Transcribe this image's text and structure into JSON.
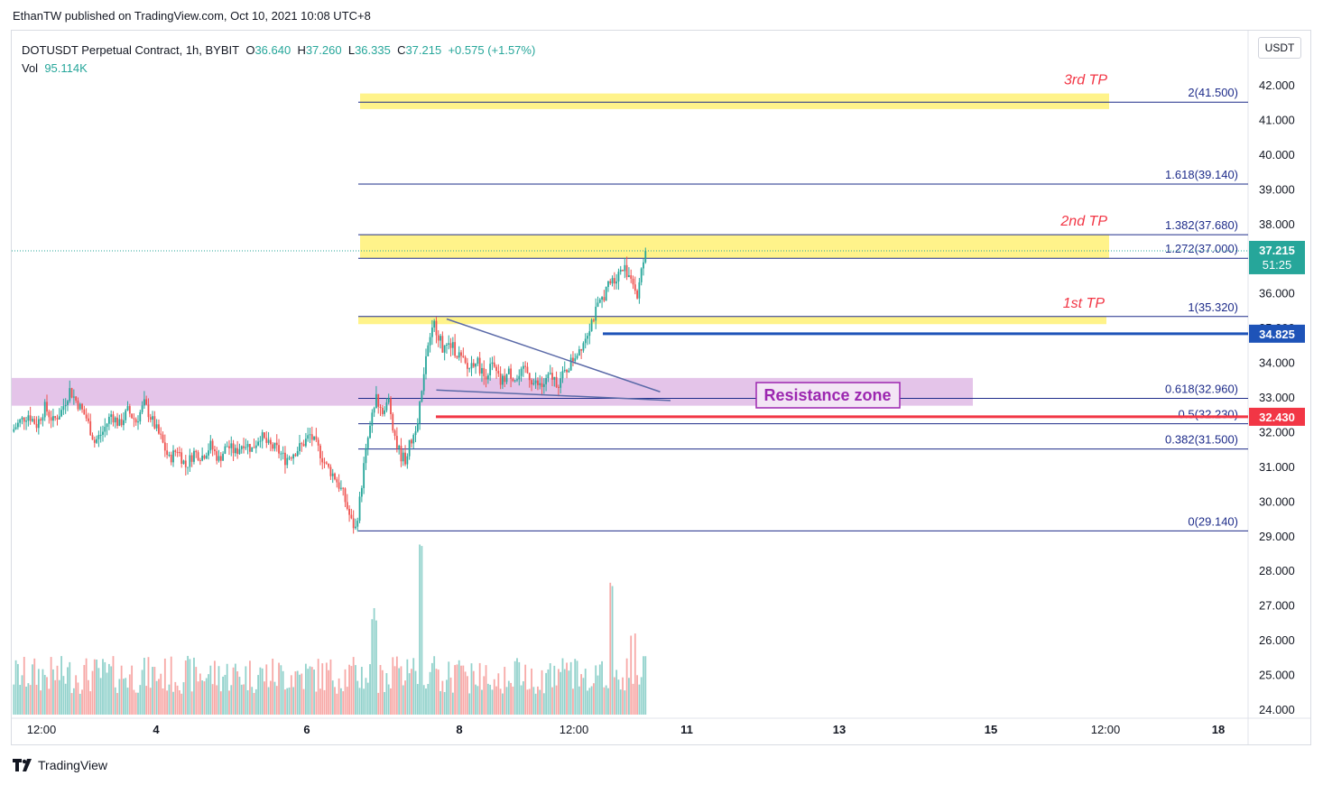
{
  "header": {
    "publish_text": "EthanTW published on TradingView.com, Oct 10, 2021 10:08 UTC+8"
  },
  "legend": {
    "symbol": "DOTUSDT Perpetual Contract, 1h, BYBIT",
    "o_label": "O",
    "o_value": "36.640",
    "h_label": "H",
    "h_value": "37.260",
    "l_label": "L",
    "l_value": "36.335",
    "c_label": "C",
    "c_value": "37.215",
    "change": "+0.575 (+1.57%)",
    "vol_label": "Vol",
    "vol_value": "95.114K"
  },
  "currency_button": "USDT",
  "footer": {
    "brand": "TradingView"
  },
  "colors": {
    "up": "#26a69a",
    "down": "#ef5350",
    "fib_line": "#1e2c8a",
    "tp_zone": "#fff176",
    "resistance_zone": "#e1bee7",
    "blue_level": "#1e53b8",
    "red_level": "#f23645",
    "trend": "#5b6aa8"
  },
  "chart_data": {
    "type": "candlestick",
    "y_axis": {
      "min": 24.0,
      "max": 42.0,
      "ticks": [
        "42.000",
        "41.000",
        "40.000",
        "39.000",
        "38.000",
        "37.000",
        "36.000",
        "35.000",
        "34.000",
        "33.000",
        "32.000",
        "31.000",
        "30.000",
        "29.000",
        "28.000",
        "27.000",
        "26.000",
        "25.000",
        "24.000"
      ]
    },
    "x_axis": {
      "ticks": [
        "12:00",
        "4",
        "6",
        "8",
        "12:00",
        "11",
        "13",
        "15",
        "12:00",
        "18"
      ],
      "bold": [
        "4",
        "6",
        "8",
        "11",
        "13",
        "15",
        "18"
      ]
    },
    "fib_levels": [
      {
        "ratio": "2",
        "value": 41.5,
        "label": "2(41.500)"
      },
      {
        "ratio": "1.618",
        "value": 39.14,
        "label": "1.618(39.140)"
      },
      {
        "ratio": "1.382",
        "value": 37.68,
        "label": "1.382(37.680)"
      },
      {
        "ratio": "1.272",
        "value": 37.0,
        "label": "1.272(37.000)"
      },
      {
        "ratio": "1",
        "value": 35.32,
        "label": "1(35.320)"
      },
      {
        "ratio": "0.618",
        "value": 32.96,
        "label": "0.618(32.960)"
      },
      {
        "ratio": "0.5",
        "value": 32.23,
        "label": "0.5(32.230)"
      },
      {
        "ratio": "0.382",
        "value": 31.5,
        "label": "0.382(31.500)"
      },
      {
        "ratio": "0",
        "value": 29.14,
        "label": "0(29.140)"
      }
    ],
    "take_profit_zones": [
      {
        "label": "3rd TP",
        "from": 41.3,
        "to": 41.75
      },
      {
        "label": "2nd TP",
        "from": 37.0,
        "to": 37.68
      },
      {
        "label": "1st TP",
        "from": 35.1,
        "to": 35.32
      }
    ],
    "resistance_zone": {
      "label": "Resistance zone",
      "from": 32.75,
      "to": 33.55
    },
    "price_levels": [
      {
        "value": 37.215,
        "label": "37.215",
        "countdown": "51:25",
        "color": "#26a69a"
      },
      {
        "value": 34.825,
        "label": "34.825",
        "color": "#1e53b8"
      },
      {
        "value": 32.43,
        "label": "32.430",
        "color": "#f23645"
      }
    ],
    "last_price": 37.215,
    "price_path": [
      [
        0,
        32.0
      ],
      [
        4,
        32.3
      ],
      [
        8,
        32.5
      ],
      [
        12,
        32.2
      ],
      [
        16,
        32.7
      ],
      [
        20,
        32.3
      ],
      [
        24,
        32.6
      ],
      [
        28,
        33.2
      ],
      [
        32,
        32.8
      ],
      [
        36,
        32.4
      ],
      [
        40,
        31.7
      ],
      [
        44,
        32.0
      ],
      [
        48,
        32.5
      ],
      [
        52,
        32.2
      ],
      [
        56,
        32.6
      ],
      [
        60,
        32.3
      ],
      [
        64,
        32.8
      ],
      [
        68,
        32.3
      ],
      [
        72,
        31.8
      ],
      [
        76,
        31.2
      ],
      [
        80,
        31.5
      ],
      [
        84,
        31.0
      ],
      [
        88,
        31.4
      ],
      [
        92,
        31.3
      ],
      [
        96,
        31.6
      ],
      [
        100,
        31.2
      ],
      [
        104,
        31.6
      ],
      [
        108,
        31.4
      ],
      [
        112,
        31.7
      ],
      [
        116,
        31.5
      ],
      [
        120,
        31.9
      ],
      [
        124,
        31.6
      ],
      [
        128,
        31.5
      ],
      [
        132,
        31.2
      ],
      [
        136,
        31.4
      ],
      [
        140,
        31.6
      ],
      [
        144,
        31.9
      ],
      [
        148,
        31.5
      ],
      [
        152,
        31.0
      ],
      [
        156,
        30.7
      ],
      [
        160,
        30.2
      ],
      [
        164,
        29.4
      ],
      [
        166,
        29.2
      ],
      [
        168,
        30.0
      ],
      [
        170,
        31.0
      ],
      [
        172,
        31.8
      ],
      [
        174,
        32.4
      ],
      [
        176,
        33.0
      ],
      [
        178,
        32.7
      ],
      [
        180,
        32.6
      ],
      [
        182,
        32.9
      ],
      [
        184,
        32.2
      ],
      [
        186,
        31.6
      ],
      [
        188,
        31.3
      ],
      [
        190,
        31.2
      ],
      [
        192,
        31.6
      ],
      [
        194,
        31.9
      ],
      [
        196,
        32.4
      ],
      [
        198,
        33.2
      ],
      [
        200,
        34.2
      ],
      [
        202,
        34.6
      ],
      [
        204,
        35.1
      ],
      [
        206,
        34.8
      ],
      [
        208,
        34.4
      ],
      [
        212,
        34.5
      ],
      [
        216,
        34.2
      ],
      [
        220,
        33.8
      ],
      [
        224,
        34.1
      ],
      [
        228,
        33.6
      ],
      [
        232,
        33.9
      ],
      [
        236,
        33.4
      ],
      [
        240,
        33.7
      ],
      [
        244,
        33.5
      ],
      [
        248,
        33.8
      ],
      [
        252,
        33.4
      ],
      [
        256,
        33.3
      ],
      [
        260,
        33.6
      ],
      [
        264,
        33.4
      ],
      [
        268,
        33.8
      ],
      [
        272,
        34.2
      ],
      [
        276,
        34.6
      ],
      [
        280,
        35.2
      ],
      [
        284,
        35.7
      ],
      [
        288,
        36.2
      ],
      [
        292,
        36.5
      ],
      [
        296,
        36.7
      ],
      [
        300,
        36.4
      ],
      [
        302,
        35.9
      ],
      [
        304,
        36.6
      ],
      [
        306,
        37.2
      ]
    ],
    "trendlines": [
      {
        "name": "upper",
        "x0": 210,
        "y0": 35.25,
        "x1": 300,
        "y1": 33.15
      },
      {
        "name": "lower",
        "x0": 205,
        "y0": 33.2,
        "x1": 305,
        "y1": 32.9
      }
    ],
    "volume_spikes": [
      {
        "x": 175,
        "v": 0.62
      },
      {
        "x": 198,
        "v": 1.0
      },
      {
        "x": 206,
        "v": 0.96
      },
      {
        "x": 290,
        "v": 0.83
      },
      {
        "x": 300,
        "v": 0.53
      }
    ]
  }
}
